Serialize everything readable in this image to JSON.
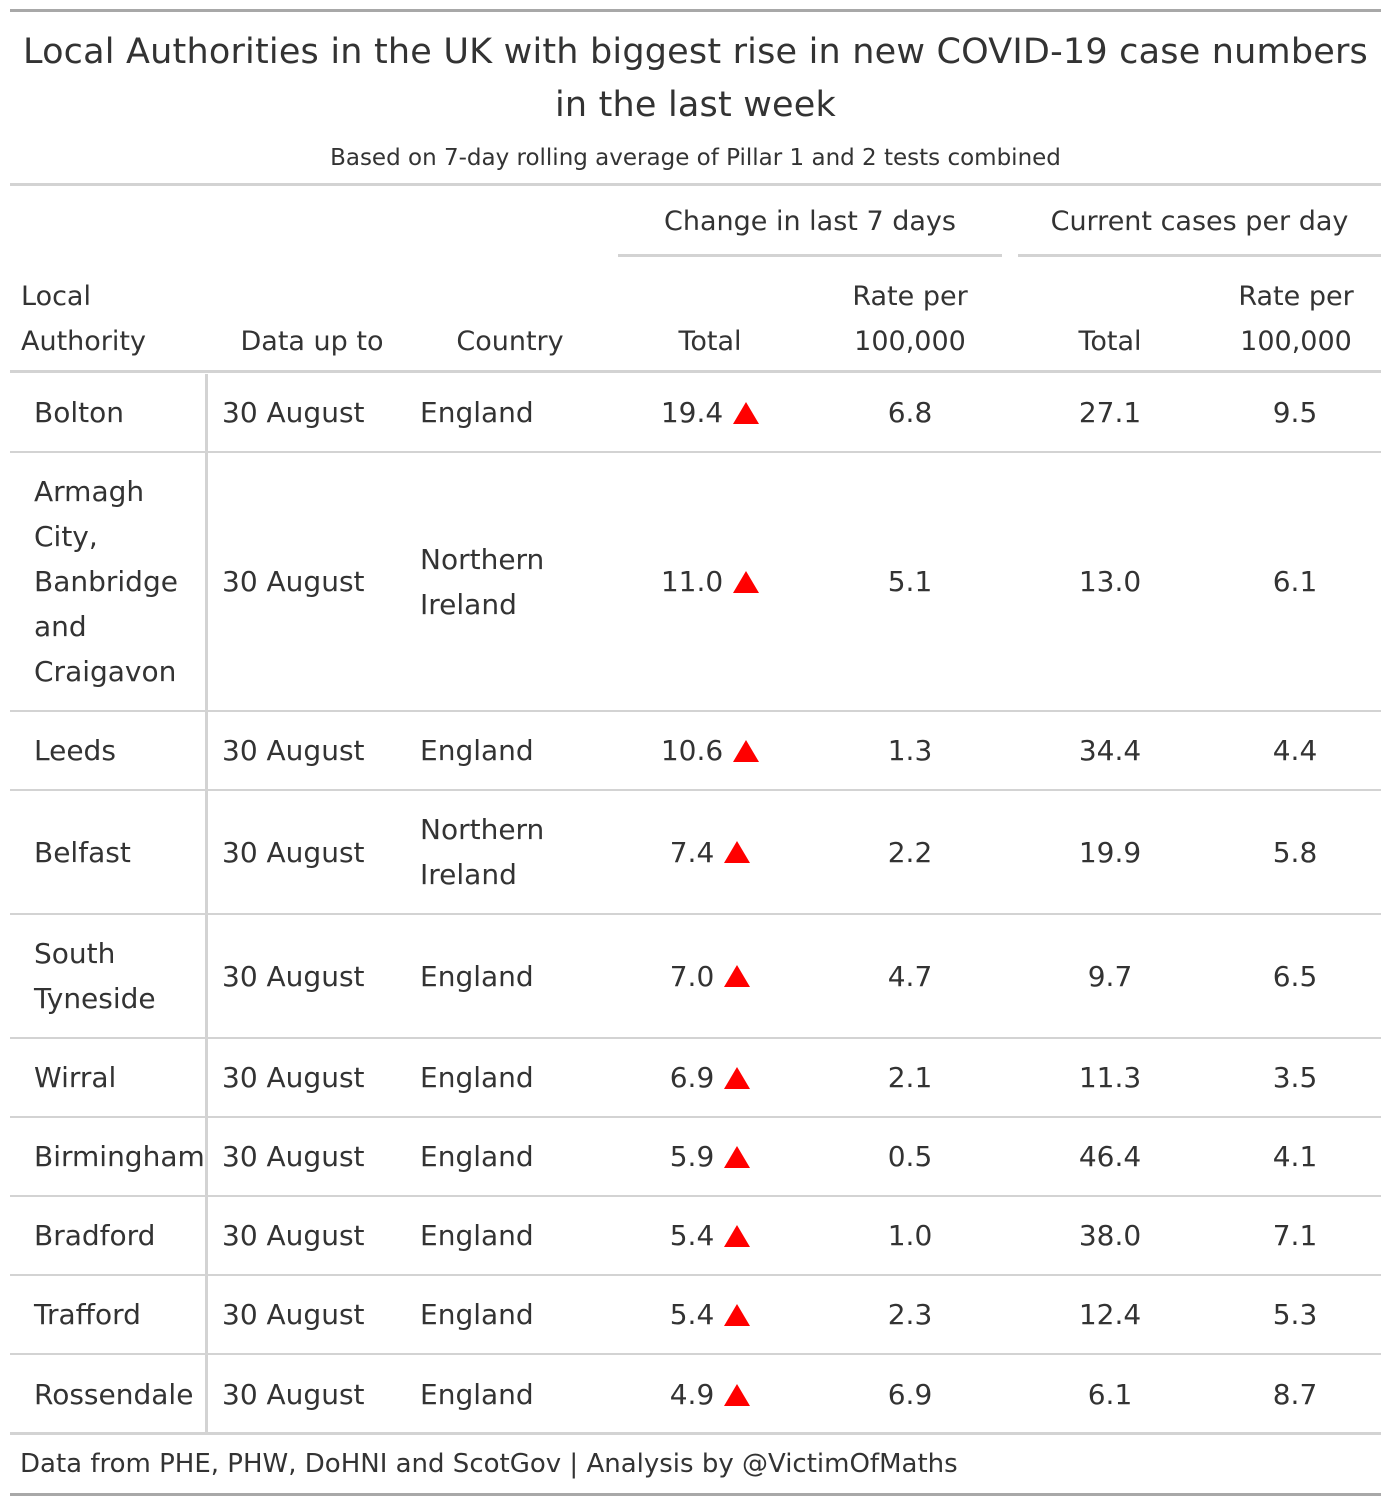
{
  "chart_data": {
    "type": "table",
    "title": "Local Authorities in the UK with biggest rise in new COVID-19 case numbers in the last week",
    "subtitle": "Based on 7-day rolling average of Pillar 1 and 2 tests combined",
    "spanners": {
      "change": "Change in last 7 days",
      "current": "Current cases per day"
    },
    "columns": {
      "local_authority": "Local Authority",
      "data_up_to": "Data up to",
      "country": "Country",
      "change_total": "Total",
      "change_rate": "Rate per 100,000",
      "current_total": "Total",
      "current_rate": "Rate per 100,000"
    },
    "rows": [
      {
        "local_authority": "Bolton",
        "data_up_to": "30 August",
        "country": "England",
        "change_total": "19.4",
        "change_rate": "6.8",
        "current_total": "27.1",
        "current_rate": "9.5",
        "trend": "up"
      },
      {
        "local_authority": "Armagh City, Banbridge and Craigavon",
        "data_up_to": "30 August",
        "country": "Northern Ireland",
        "change_total": "11.0",
        "change_rate": "5.1",
        "current_total": "13.0",
        "current_rate": "6.1",
        "trend": "up"
      },
      {
        "local_authority": "Leeds",
        "data_up_to": "30 August",
        "country": "England",
        "change_total": "10.6",
        "change_rate": "1.3",
        "current_total": "34.4",
        "current_rate": "4.4",
        "trend": "up"
      },
      {
        "local_authority": "Belfast",
        "data_up_to": "30 August",
        "country": "Northern Ireland",
        "change_total": "7.4",
        "change_rate": "2.2",
        "current_total": "19.9",
        "current_rate": "5.8",
        "trend": "up"
      },
      {
        "local_authority": "South Tyneside",
        "data_up_to": "30 August",
        "country": "England",
        "change_total": "7.0",
        "change_rate": "4.7",
        "current_total": "9.7",
        "current_rate": "6.5",
        "trend": "up"
      },
      {
        "local_authority": "Wirral",
        "data_up_to": "30 August",
        "country": "England",
        "change_total": "6.9",
        "change_rate": "2.1",
        "current_total": "11.3",
        "current_rate": "3.5",
        "trend": "up"
      },
      {
        "local_authority": "Birmingham",
        "data_up_to": "30 August",
        "country": "England",
        "change_total": "5.9",
        "change_rate": "0.5",
        "current_total": "46.4",
        "current_rate": "4.1",
        "trend": "up"
      },
      {
        "local_authority": "Bradford",
        "data_up_to": "30 August",
        "country": "England",
        "change_total": "5.4",
        "change_rate": "1.0",
        "current_total": "38.0",
        "current_rate": "7.1",
        "trend": "up"
      },
      {
        "local_authority": "Trafford",
        "data_up_to": "30 August",
        "country": "England",
        "change_total": "5.4",
        "change_rate": "2.3",
        "current_total": "12.4",
        "current_rate": "5.3",
        "trend": "up"
      },
      {
        "local_authority": "Rossendale",
        "data_up_to": "30 August",
        "country": "England",
        "change_total": "4.9",
        "change_rate": "6.9",
        "current_total": "6.1",
        "current_rate": "8.7",
        "trend": "up"
      }
    ],
    "source_note": "Data from PHE, PHW, DoHNI and ScotGov | Analysis by @VictimOfMaths",
    "colors": {
      "up_arrow": "#ff0000",
      "text": "#333333",
      "rules": "#d3d3d3"
    },
    "icons": {
      "up_arrow": "triangle-up-icon"
    }
  }
}
